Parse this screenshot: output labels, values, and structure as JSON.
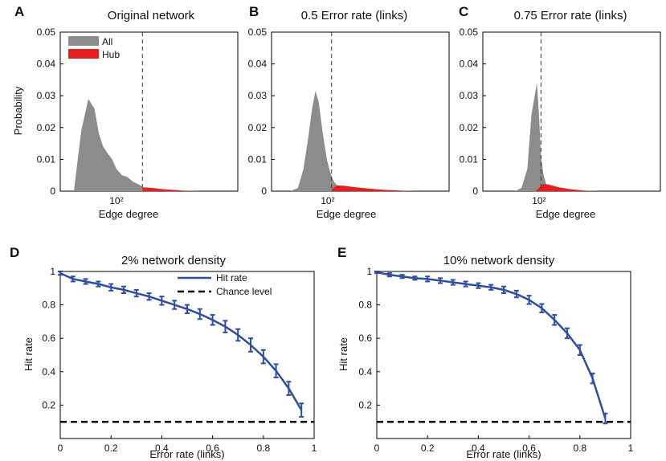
{
  "chart_data": [
    {
      "panel": "A",
      "type": "area",
      "title": "Original network",
      "xlabel": "Edge degree",
      "ylabel": "Probability",
      "xscale": "log",
      "xticks": [
        {
          "value": 100,
          "label": "10²"
        }
      ],
      "xlim": [
        25,
        2000
      ],
      "ylim": [
        0,
        0.05
      ],
      "yticks": [
        "0",
        "0.01",
        "0.02",
        "0.03",
        "0.04",
        "0.05"
      ],
      "threshold": 190,
      "legend": {
        "position": "top-left",
        "entries": [
          {
            "name": "All",
            "color": "#8c8c8c"
          },
          {
            "name": "Hub",
            "color": "#e62020"
          }
        ]
      },
      "series": [
        {
          "name": "All",
          "color": "#8c8c8c",
          "x": [
            35,
            42,
            50,
            58,
            65,
            72,
            80,
            90,
            100,
            115,
            130,
            150,
            170,
            190
          ],
          "y": [
            0,
            0.019,
            0.029,
            0.026,
            0.018,
            0.014,
            0.012,
            0.01,
            0.007,
            0.005,
            0.0045,
            0.003,
            0.0022,
            0.0015
          ]
        },
        {
          "name": "Hub",
          "color": "#e62020",
          "x": [
            190,
            220,
            260,
            320,
            400,
            500,
            650,
            800
          ],
          "y": [
            0.0012,
            0.0011,
            0.0009,
            0.0006,
            0.0004,
            0.0002,
            0.0001,
            0
          ]
        }
      ]
    },
    {
      "panel": "B",
      "type": "area",
      "title": "0.5 Error rate (links)",
      "xlabel": "Edge degree",
      "ylabel": "",
      "xscale": "log",
      "xticks": [
        {
          "value": 100,
          "label": "10²"
        }
      ],
      "xlim": [
        25,
        2000
      ],
      "ylim": [
        0,
        0.05
      ],
      "yticks": [
        "0",
        "0.01",
        "0.02",
        "0.03",
        "0.04",
        "0.05"
      ],
      "threshold": 110,
      "series": [
        {
          "name": "All",
          "color": "#8c8c8c",
          "x": [
            40,
            48,
            55,
            62,
            68,
            74,
            80,
            86,
            92,
            98,
            104,
            112,
            120,
            130,
            145,
            160
          ],
          "y": [
            0,
            0.001,
            0.007,
            0.017,
            0.026,
            0.0315,
            0.028,
            0.021,
            0.015,
            0.01,
            0.007,
            0.004,
            0.0025,
            0.0015,
            0.0007,
            0
          ]
        },
        {
          "name": "Hub",
          "color": "#e62020",
          "x": [
            110,
            125,
            150,
            200,
            280,
            400,
            600,
            900
          ],
          "y": [
            0.0005,
            0.0018,
            0.0017,
            0.0012,
            0.0008,
            0.0004,
            0.0002,
            0
          ]
        }
      ]
    },
    {
      "panel": "C",
      "type": "area",
      "title": "0.75 Error rate (links)",
      "xlabel": "Edge degree",
      "ylabel": "",
      "xscale": "log",
      "xticks": [
        {
          "value": 100,
          "label": "10²"
        }
      ],
      "xlim": [
        25,
        2000
      ],
      "ylim": [
        0,
        0.05
      ],
      "yticks": [
        "0",
        "0.01",
        "0.02",
        "0.03",
        "0.04",
        "0.05"
      ],
      "threshold": 105,
      "series": [
        {
          "name": "All",
          "color": "#8c8c8c",
          "x": [
            55,
            65,
            75,
            83,
            90,
            95,
            100,
            105,
            112,
            120,
            130,
            145,
            160
          ],
          "y": [
            0,
            0.001,
            0.007,
            0.024,
            0.03,
            0.034,
            0.024,
            0.011,
            0.005,
            0.002,
            0.001,
            0.0004,
            0
          ]
        },
        {
          "name": "Hub",
          "color": "#e62020",
          "x": [
            92,
            100,
            110,
            125,
            145,
            170,
            220,
            300,
            450
          ],
          "y": [
            0,
            0.001,
            0.0022,
            0.0021,
            0.0016,
            0.0011,
            0.0006,
            0.0002,
            0
          ]
        }
      ]
    },
    {
      "panel": "D",
      "type": "line",
      "title": "2% network density",
      "xlabel": "Error rate (links)",
      "ylabel": "Hit rate",
      "xlim": [
        0,
        1
      ],
      "ylim": [
        0,
        1
      ],
      "xticks": [
        "0",
        "0.2",
        "0.4",
        "0.6",
        "0.8",
        "1"
      ],
      "yticks": [
        "0.2",
        "0.4",
        "0.6",
        "0.8",
        "1"
      ],
      "legend": {
        "position": "top-right",
        "entries": [
          {
            "name": "Hit rate",
            "color": "#2f4ea0",
            "style": "solid"
          },
          {
            "name": "Chance level",
            "color": "#000000",
            "style": "dashed"
          }
        ]
      },
      "series": [
        {
          "name": "Hit rate",
          "color": "#2f4ea0",
          "x": [
            0,
            0.05,
            0.1,
            0.15,
            0.2,
            0.25,
            0.3,
            0.35,
            0.4,
            0.45,
            0.5,
            0.55,
            0.6,
            0.65,
            0.7,
            0.75,
            0.8,
            0.85,
            0.9,
            0.95
          ],
          "y": [
            0.99,
            0.955,
            0.94,
            0.925,
            0.905,
            0.89,
            0.87,
            0.85,
            0.825,
            0.8,
            0.775,
            0.745,
            0.71,
            0.67,
            0.62,
            0.56,
            0.49,
            0.405,
            0.3,
            0.17
          ],
          "err": [
            0.01,
            0.015,
            0.015,
            0.015,
            0.02,
            0.02,
            0.02,
            0.02,
            0.025,
            0.025,
            0.025,
            0.03,
            0.03,
            0.035,
            0.035,
            0.04,
            0.04,
            0.04,
            0.04,
            0.04
          ]
        },
        {
          "name": "Chance level",
          "color": "#000000",
          "style": "dashed",
          "y": 0.1
        }
      ]
    },
    {
      "panel": "E",
      "type": "line",
      "title": "10% network density",
      "xlabel": "Error rate (links)",
      "ylabel": "Hit rate",
      "xlim": [
        0,
        1
      ],
      "ylim": [
        0,
        1
      ],
      "xticks": [
        "0",
        "0.2",
        "0.4",
        "0.6",
        "0.8",
        "1"
      ],
      "yticks": [
        "0.2",
        "0.4",
        "0.6",
        "0.8",
        "1"
      ],
      "series": [
        {
          "name": "Hit rate",
          "color": "#2f4ea0",
          "x": [
            0,
            0.05,
            0.1,
            0.15,
            0.2,
            0.25,
            0.3,
            0.35,
            0.4,
            0.45,
            0.5,
            0.55,
            0.6,
            0.65,
            0.7,
            0.75,
            0.8,
            0.85,
            0.9
          ],
          "y": [
            0.995,
            0.98,
            0.97,
            0.96,
            0.955,
            0.945,
            0.935,
            0.925,
            0.915,
            0.905,
            0.89,
            0.865,
            0.83,
            0.78,
            0.71,
            0.63,
            0.53,
            0.36,
            0.12
          ],
          "err": [
            0.005,
            0.01,
            0.01,
            0.01,
            0.015,
            0.015,
            0.015,
            0.015,
            0.015,
            0.015,
            0.02,
            0.02,
            0.025,
            0.025,
            0.03,
            0.03,
            0.03,
            0.03,
            0.03
          ]
        },
        {
          "name": "Chance level",
          "color": "#000000",
          "style": "dashed",
          "y": 0.1
        }
      ]
    }
  ]
}
